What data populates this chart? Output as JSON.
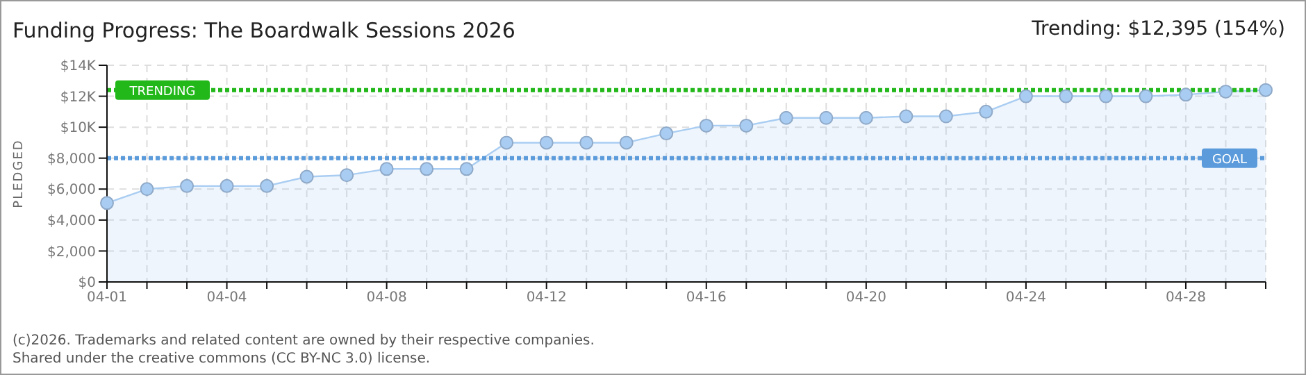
{
  "chart_data": {
    "type": "area",
    "title": "Funding Progress: The Boardwalk Sessions 2026",
    "subtitle": "Trending: $12,395 (154%)",
    "ylabel": "PLEDGED",
    "categories": [
      "04-01",
      null,
      null,
      "04-04",
      null,
      null,
      null,
      "04-08",
      null,
      null,
      null,
      "04-12",
      null,
      null,
      null,
      "04-16",
      null,
      null,
      null,
      "04-20",
      null,
      null,
      null,
      "04-24",
      null,
      null,
      null,
      "04-28",
      null,
      null
    ],
    "series": [
      {
        "color": "#a9cdf2",
        "values": [
          5100,
          6000,
          6200,
          6200,
          6200,
          6800,
          6900,
          7300,
          7300,
          7300,
          9000,
          9000,
          9000,
          9000,
          9600,
          10100,
          10100,
          10600,
          10600,
          10600,
          10700,
          10700,
          11000,
          12000,
          12000,
          12000,
          12000,
          12100,
          12300,
          12400
        ]
      }
    ],
    "ylim": [
      0,
      14000
    ],
    "yticks": [
      {
        "value": 0,
        "label": "$0"
      },
      {
        "value": 2000,
        "label": "$2,000"
      },
      {
        "value": 4000,
        "label": "$4,000"
      },
      {
        "value": 6000,
        "label": "$6,000"
      },
      {
        "value": 8000,
        "label": "$8,000"
      },
      {
        "value": 10000,
        "label": "$10K"
      },
      {
        "value": 12000,
        "label": "$12K"
      },
      {
        "value": 14000,
        "label": "$14K"
      }
    ],
    "grid": true,
    "marker": "circle",
    "ref_lines": [
      {
        "axis": "y",
        "value": 12395,
        "label": "TRENDING",
        "color": "#22b81a",
        "line_style": "dotted"
      },
      {
        "axis": "y",
        "value": 8000,
        "label": "GOAL",
        "color": "#5b9bdb",
        "line_style": "dotted"
      }
    ],
    "annotations": [
      "(c)2026. Trademarks and related content are owned by their respective companies.",
      "Shared under the creative commons (CC BY-NC 3.0) license."
    ]
  }
}
